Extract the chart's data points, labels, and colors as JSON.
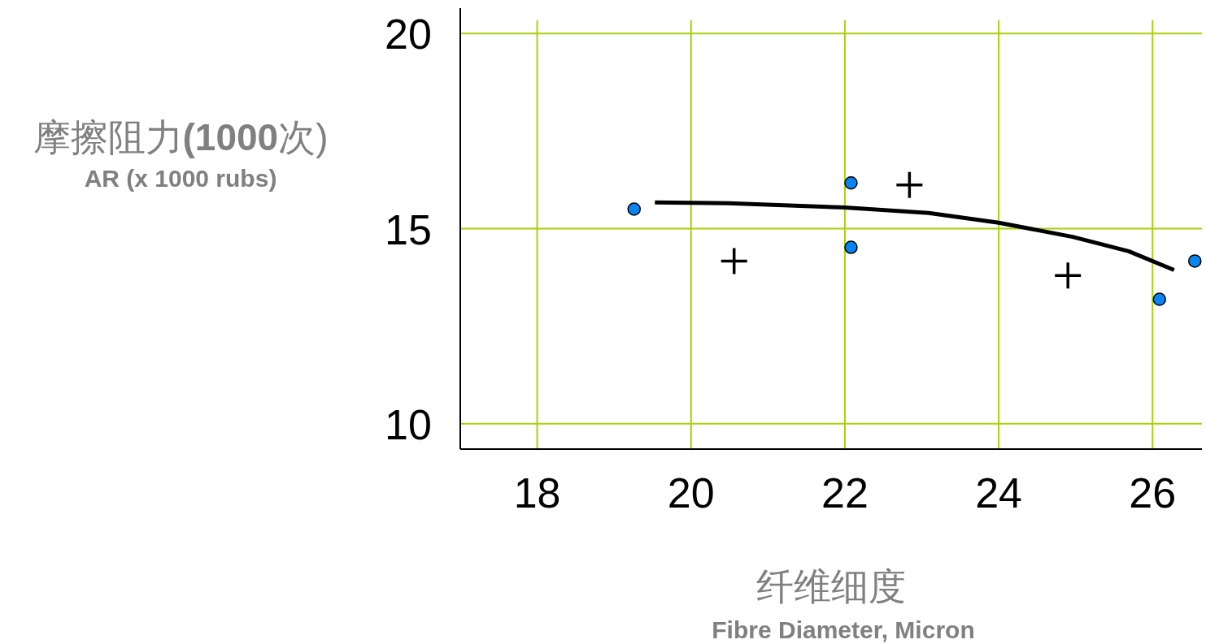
{
  "chart_data": {
    "type": "scatter",
    "xlabel": "纤维细度\nFibre Diameter, Micron",
    "ylabel": "摩擦阻力**(1000**次)\nAR (x 1000 rubs)",
    "xlim": [
      17,
      26.6
    ],
    "ylim": [
      9.35,
      20.65
    ],
    "xticks": [
      18,
      20,
      22,
      24,
      26
    ],
    "yticks": [
      10,
      15,
      20
    ],
    "grid": true,
    "series": [
      {
        "type": "scatter",
        "marker": "circle",
        "color": "#0a84f0",
        "x": [
          19.26,
          22.08,
          22.08,
          26.09,
          26.55
        ],
        "values": [
          15.5,
          16.17,
          14.52,
          13.19,
          14.17
        ]
      },
      {
        "type": "scatter",
        "marker": "cross",
        "color": "#000000",
        "x": [
          20.56,
          22.84,
          24.9
        ],
        "values": [
          14.17,
          16.12,
          13.8
        ]
      },
      {
        "type": "line",
        "marker": "none",
        "color": "#000000",
        "x": [
          19.53,
          20.49,
          22,
          23.09,
          24,
          24.96,
          25.69,
          26.28
        ],
        "values": [
          15.67,
          15.65,
          15.54,
          15.4,
          15.15,
          14.79,
          14.42,
          13.94
        ]
      }
    ]
  }
}
